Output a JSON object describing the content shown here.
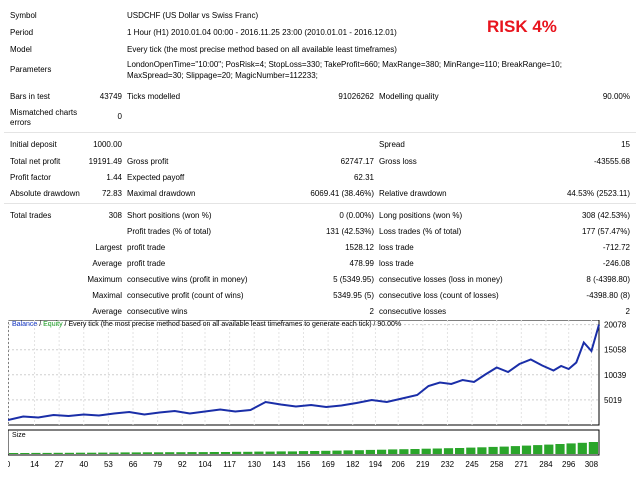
{
  "report": {
    "symbol_label": "Symbol",
    "symbol_value": "USDCHF (US Dollar vs Swiss Franc)",
    "period_label": "Period",
    "period_value": "1 Hour (H1) 2010.01.04 00:00 - 2016.11.25 23:00 (2010.01.01 - 2016.12.01)",
    "model_label": "Model",
    "model_value": "Every tick (the most precise method based on all available least timeframes)",
    "parameters_label": "Parameters",
    "parameters_line1": "LondonOpenTime=\"10:00\"; PosRisk=4; StopLoss=330; TakeProfit=660; MaxRange=380; MinRange=110; BreakRange=10;",
    "parameters_line2": "MaxSpread=30; Slippage=20; MagicNumber=112233;",
    "bars_label": "Bars in test",
    "bars_value": "43749",
    "ticks_label": "Ticks modelled",
    "ticks_value": "91026262",
    "quality_label": "Modelling quality",
    "quality_value": "90.00%",
    "mismatch_label_1": "Mismatched charts",
    "mismatch_label_2": "errors",
    "mismatch_value": "0",
    "risk_badge": "RISK 4%"
  },
  "stats": {
    "initial_deposit_label": "Initial deposit",
    "initial_deposit_value": "1000.00",
    "spread_label": "Spread",
    "spread_value": "15",
    "net_profit_label": "Total net profit",
    "net_profit_value": "19191.49",
    "gross_profit_label": "Gross profit",
    "gross_profit_value": "62747.17",
    "gross_loss_label": "Gross loss",
    "gross_loss_value": "-43555.68",
    "profit_factor_label": "Profit factor",
    "profit_factor_value": "1.44",
    "expected_payoff_label": "Expected payoff",
    "expected_payoff_value": "62.31",
    "abs_dd_label": "Absolute drawdown",
    "abs_dd_value": "72.83",
    "max_dd_label": "Maximal drawdown",
    "max_dd_value": "6069.41 (38.46%)",
    "rel_dd_label": "Relative drawdown",
    "rel_dd_value": "44.53% (2523.11)",
    "total_trades_label": "Total trades",
    "total_trades_value": "308",
    "short_label": "Short positions (won %)",
    "short_value": "0 (0.00%)",
    "long_label": "Long positions (won %)",
    "long_value": "308 (42.53%)",
    "profit_trades_label": "Profit trades (% of total)",
    "profit_trades_value": "131 (42.53%)",
    "loss_trades_label": "Loss trades (% of total)",
    "loss_trades_value": "177 (57.47%)",
    "largest_label": "Largest",
    "largest_profit_label": "profit trade",
    "largest_profit_value": "1528.12",
    "largest_loss_label": "loss trade",
    "largest_loss_value": "-712.72",
    "average_label": "Average",
    "average_profit_label": "profit trade",
    "average_profit_value": "478.99",
    "average_loss_label": "loss trade",
    "average_loss_value": "-246.08",
    "maximum_label": "Maximum",
    "max_cons_wins_label": "consecutive wins (profit in money)",
    "max_cons_wins_value": "5 (5349.95)",
    "max_cons_losses_label": "consecutive losses (loss in money)",
    "max_cons_losses_value": "8 (-4398.80)",
    "maximal_label": "Maximal",
    "maximal_cons_profit_label": "consecutive profit (count of wins)",
    "maximal_cons_profit_value": "5349.95 (5)",
    "maximal_cons_loss_label": "consecutive loss (count of losses)",
    "maximal_cons_loss_value": "-4398.80 (8)",
    "average2_label": "Average",
    "avg_cons_wins_label": "consecutive wins",
    "avg_cons_wins_value": "2",
    "avg_cons_losses_label": "consecutive losses",
    "avg_cons_losses_value": "2"
  },
  "chart_legend": {
    "balance": "Balance",
    "slash": " / ",
    "equity": "Equity",
    "rest": " / Every tick (the most precise method based on all available least timeframes to generate each tick) / 90.00%",
    "size_label": "Size"
  },
  "colors": {
    "line": "#1a2ea8",
    "bars": "#2aa52a",
    "risk": "#e8141d"
  },
  "chart_data": {
    "type": "line",
    "title": "",
    "xlabel": "",
    "ylabel": "",
    "ylim": [
      0,
      21000
    ],
    "xlim": [
      0,
      312
    ],
    "y_ticks": [
      5019,
      10039,
      15058,
      20078
    ],
    "x_ticks": [
      0,
      14,
      27,
      40,
      53,
      66,
      79,
      92,
      104,
      117,
      130,
      143,
      156,
      169,
      182,
      194,
      206,
      219,
      232,
      245,
      258,
      271,
      284,
      296,
      308
    ],
    "series": [
      {
        "name": "Balance",
        "x": [
          0,
          8,
          16,
          24,
          32,
          40,
          48,
          56,
          64,
          72,
          80,
          88,
          96,
          104,
          112,
          120,
          128,
          136,
          144,
          152,
          160,
          168,
          176,
          184,
          192,
          200,
          208,
          216,
          222,
          228,
          234,
          240,
          246,
          252,
          258,
          264,
          270,
          276,
          282,
          288,
          292,
          296,
          300,
          304,
          308,
          312
        ],
        "values": [
          1000,
          1700,
          1500,
          2000,
          1800,
          2100,
          1900,
          2300,
          2600,
          2100,
          2500,
          2800,
          2300,
          2700,
          3100,
          2700,
          3000,
          4600,
          4100,
          3700,
          4000,
          3600,
          3900,
          4400,
          5000,
          4600,
          5300,
          6000,
          7800,
          8500,
          8200,
          9000,
          8600,
          10100,
          11500,
          10600,
          12200,
          13100,
          11900,
          10900,
          11800,
          11200,
          12500,
          16500,
          14800,
          20078
        ]
      }
    ]
  },
  "size_bars": {
    "ylim": [
      0,
      1
    ],
    "values": [
      0.08,
      0.08,
      0.09,
      0.09,
      0.1,
      0.1,
      0.11,
      0.11,
      0.12,
      0.12,
      0.13,
      0.13,
      0.14,
      0.14,
      0.15,
      0.15,
      0.16,
      0.16,
      0.17,
      0.17,
      0.18,
      0.18,
      0.2,
      0.2,
      0.22,
      0.22,
      0.24,
      0.25,
      0.27,
      0.28,
      0.3,
      0.32,
      0.34,
      0.36,
      0.38,
      0.4,
      0.42,
      0.44,
      0.46,
      0.48,
      0.5,
      0.53,
      0.56,
      0.59,
      0.62,
      0.66,
      0.7,
      0.74,
      0.78,
      0.83,
      0.88,
      0.93,
      1.0
    ]
  }
}
